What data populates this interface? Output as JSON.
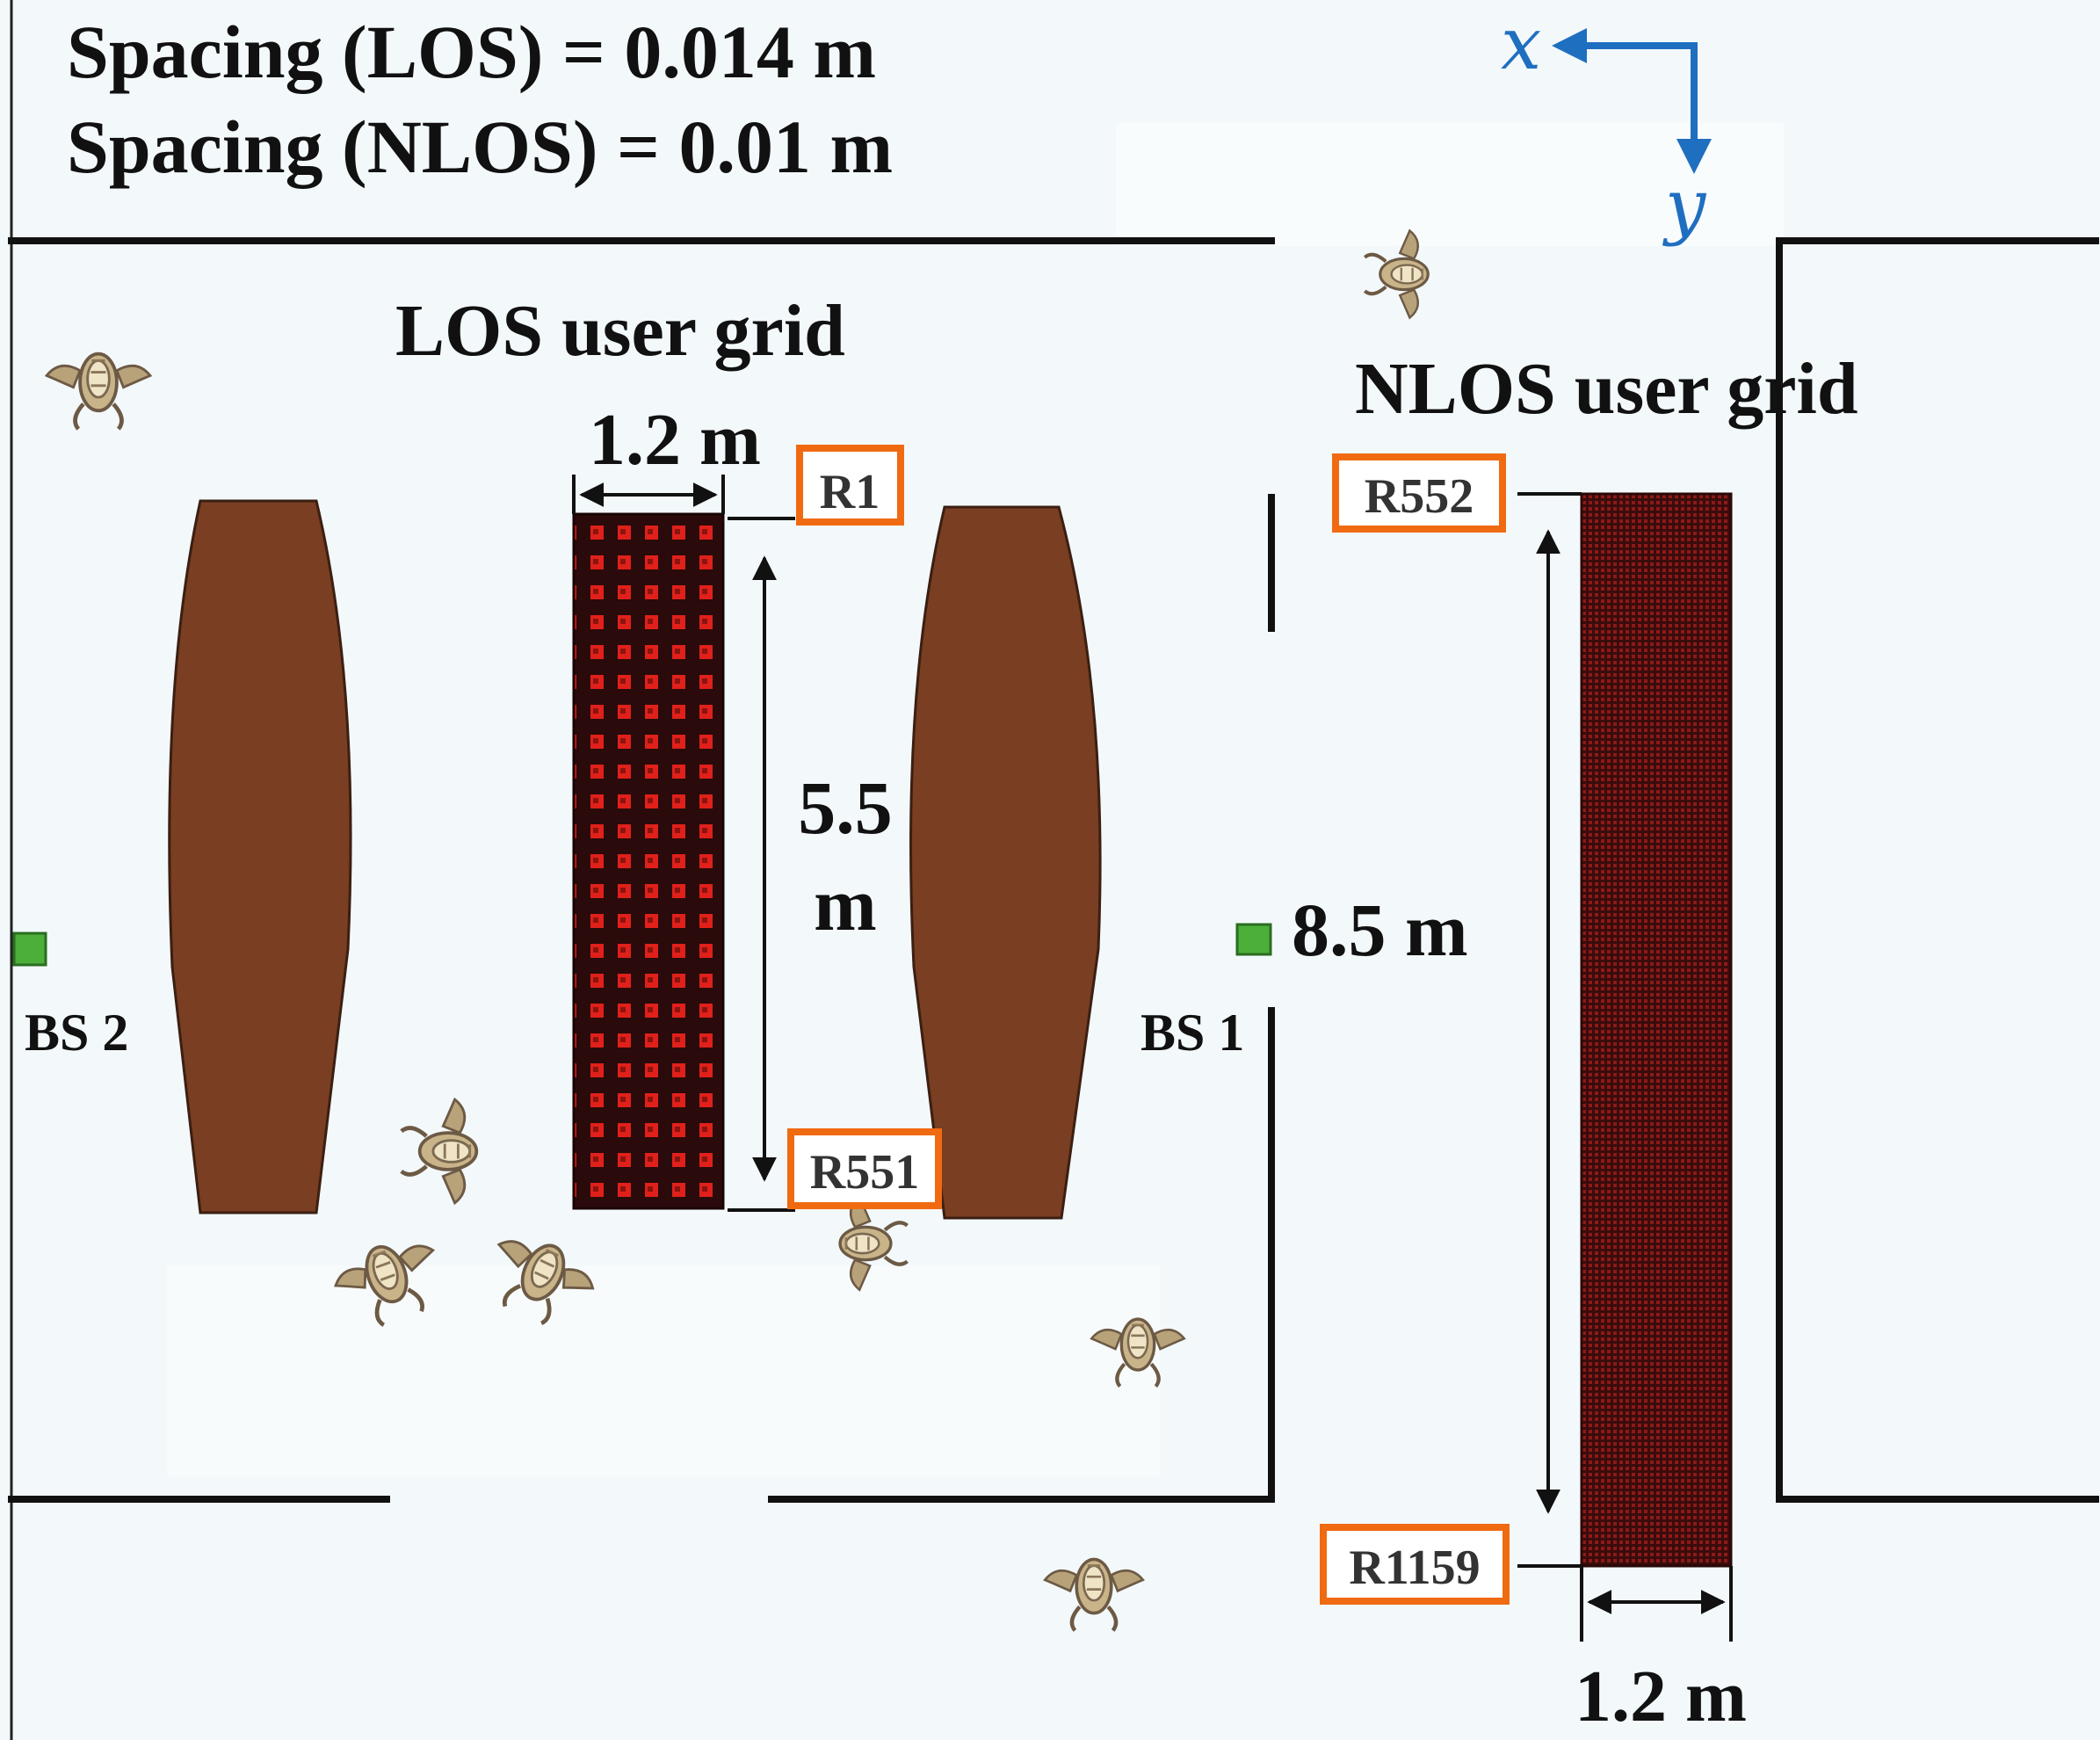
{
  "spacing": {
    "los": "Spacing (LOS) = 0.014 m",
    "nlos": "Spacing (NLOS) = 0.01 m"
  },
  "axes": {
    "x_label": "x",
    "y_label": "y"
  },
  "grids": {
    "los": {
      "title": "LOS user grid",
      "width_label": "1.2 m",
      "height_label_line1": "5.5",
      "height_label_line2": "m",
      "start_id": "R1",
      "end_id": "R551"
    },
    "nlos": {
      "title": "NLOS user grid",
      "width_label": "1.2 m",
      "height_label": "8.5 m",
      "start_id": "R552",
      "end_id": "R1159"
    }
  },
  "base_stations": {
    "bs1": "BS 1",
    "bs2": "BS 2"
  },
  "colors": {
    "background": "#f3f9fb",
    "wall": "#111111",
    "table": "#7a3e22",
    "grid_dark": "#2a0a0a",
    "grid_red": "#e0201a",
    "nlos_grid": "#5a1212",
    "label_border": "#f06a12",
    "base_station": "#4caf3a",
    "axis_arrow": "#1f6fc0",
    "person": "#c9b48a"
  }
}
